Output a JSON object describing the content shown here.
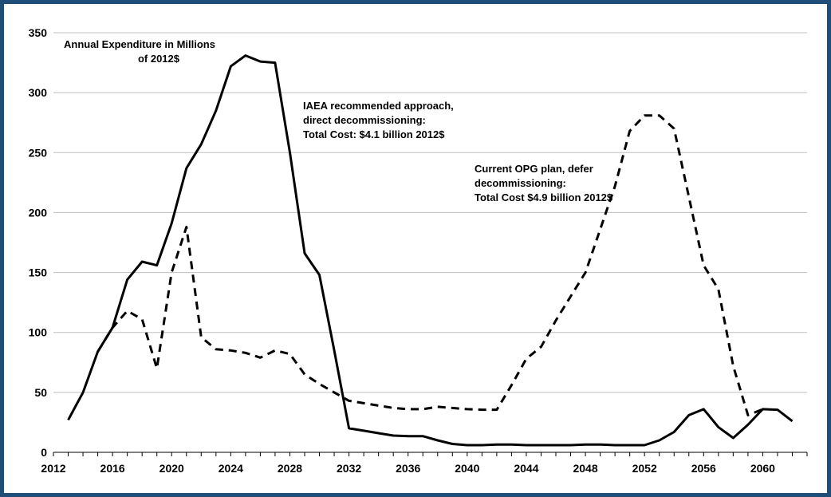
{
  "chart_data": {
    "type": "line",
    "title": "",
    "xlabel": "",
    "ylabel": "",
    "xlim": [
      2012,
      2063
    ],
    "ylim": [
      0,
      350
    ],
    "x_ticks": [
      "2012",
      "2016",
      "2020",
      "2024",
      "2028",
      "2032",
      "2036",
      "2040",
      "2044",
      "2048",
      "2052",
      "2056",
      "2060"
    ],
    "y_ticks": [
      "0",
      "50",
      "100",
      "150",
      "200",
      "250",
      "300",
      "350"
    ],
    "grid": "horizontal",
    "series": [
      {
        "style": "solid",
        "color": "#000000",
        "points": [
          [
            2013,
            27
          ],
          [
            2014,
            50
          ],
          [
            2015,
            84
          ],
          [
            2016,
            104
          ],
          [
            2017,
            144
          ],
          [
            2018,
            159
          ],
          [
            2019,
            156
          ],
          [
            2020,
            191
          ],
          [
            2021,
            237
          ],
          [
            2022,
            257
          ],
          [
            2023,
            285
          ],
          [
            2024,
            322
          ],
          [
            2025,
            331
          ],
          [
            2026,
            326
          ],
          [
            2027,
            325
          ],
          [
            2028,
            250
          ],
          [
            2029,
            166
          ],
          [
            2030,
            148
          ],
          [
            2031,
            85
          ],
          [
            2032,
            20
          ],
          [
            2033,
            18
          ],
          [
            2034,
            16
          ],
          [
            2035,
            14
          ],
          [
            2036,
            13.5
          ],
          [
            2037,
            13.5
          ],
          [
            2038,
            10
          ],
          [
            2039,
            7
          ],
          [
            2040,
            6
          ],
          [
            2041,
            6
          ],
          [
            2042,
            6.5
          ],
          [
            2043,
            6.5
          ],
          [
            2044,
            6
          ],
          [
            2045,
            6
          ],
          [
            2046,
            6
          ],
          [
            2047,
            6
          ],
          [
            2048,
            6.5
          ],
          [
            2049,
            6.5
          ],
          [
            2050,
            6
          ],
          [
            2051,
            6
          ],
          [
            2052,
            6
          ],
          [
            2053,
            10
          ],
          [
            2054,
            17
          ],
          [
            2055,
            31
          ],
          [
            2056,
            36
          ],
          [
            2057,
            21
          ],
          [
            2058,
            12
          ],
          [
            2059,
            23
          ],
          [
            2060,
            36
          ],
          [
            2061,
            35.5
          ],
          [
            2062,
            26
          ]
        ]
      },
      {
        "style": "dashed",
        "color": "#000000",
        "points": [
          [
            2015,
            84
          ],
          [
            2016,
            104
          ],
          [
            2017,
            118
          ],
          [
            2018,
            111
          ],
          [
            2019,
            70
          ],
          [
            2020,
            150
          ],
          [
            2021,
            188
          ],
          [
            2022,
            96
          ],
          [
            2023,
            86
          ],
          [
            2024,
            85
          ],
          [
            2025,
            83
          ],
          [
            2026,
            79
          ],
          [
            2027,
            85
          ],
          [
            2028,
            82
          ],
          [
            2029,
            65
          ],
          [
            2030,
            57
          ],
          [
            2031,
            50
          ],
          [
            2032,
            43
          ],
          [
            2033,
            41
          ],
          [
            2034,
            39
          ],
          [
            2035,
            37
          ],
          [
            2036,
            36
          ],
          [
            2037,
            36
          ],
          [
            2038,
            38
          ],
          [
            2039,
            37
          ],
          [
            2040,
            36
          ],
          [
            2041,
            35.5
          ],
          [
            2042,
            35.5
          ],
          [
            2043,
            56
          ],
          [
            2044,
            78
          ],
          [
            2045,
            88
          ],
          [
            2046,
            110
          ],
          [
            2047,
            130
          ],
          [
            2048,
            150
          ],
          [
            2049,
            186
          ],
          [
            2050,
            222
          ],
          [
            2051,
            268
          ],
          [
            2052,
            281
          ],
          [
            2053,
            281
          ],
          [
            2054,
            270
          ],
          [
            2055,
            213
          ],
          [
            2056,
            156
          ],
          [
            2057,
            136
          ],
          [
            2058,
            72
          ],
          [
            2059,
            31
          ],
          [
            2060,
            36
          ]
        ]
      }
    ],
    "annotations": [
      {
        "lines": [
          "Annual Expenditure in Millions",
          "of 2012$"
        ]
      },
      {
        "lines": [
          "IAEA recommended approach,",
          "direct decommissioning:",
          "Total Cost: $4.1 billion 2012$"
        ]
      },
      {
        "lines": [
          "Current OPG plan, defer",
          "decommissioning:",
          "Total Cost $4.9 billion 2012$"
        ]
      }
    ]
  }
}
